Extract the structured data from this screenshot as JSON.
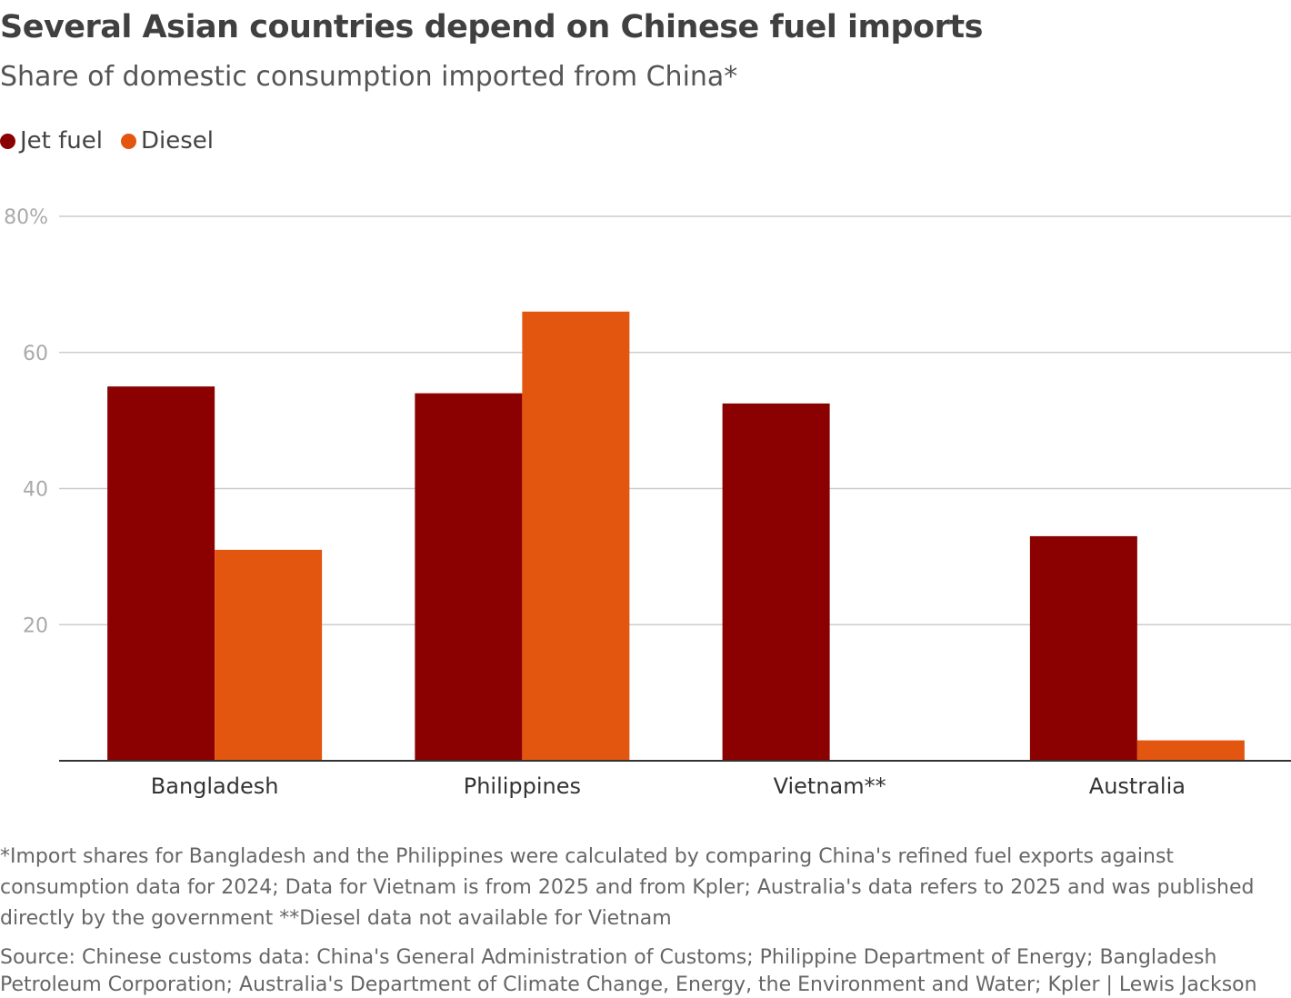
{
  "chart_data": {
    "type": "bar",
    "title": "Several Asian countries depend on Chinese fuel imports",
    "subtitle": "Share of domestic consumption imported from China*",
    "categories": [
      "Bangladesh",
      "Philippines",
      "Vietnam**",
      "Australia"
    ],
    "series": [
      {
        "name": "Jet fuel",
        "color": "#8b0000",
        "values": [
          55,
          54,
          52.5,
          33
        ]
      },
      {
        "name": "Diesel",
        "color": "#e3560f",
        "values": [
          31,
          66,
          null,
          3
        ]
      }
    ],
    "ylim": [
      0,
      80
    ],
    "yticks": [
      20,
      40,
      60,
      {
        "value": 80,
        "label": "80%"
      }
    ],
    "grid": true,
    "footnote": "*Import shares for Bangladesh and the Philippines were calculated by comparing China's refined fuel exports against consumption data for 2024; Data for Vietnam is from 2025 and from Kpler; Australia's data refers to 2025 and was published directly by the government **Diesel data not available for Vietnam",
    "source": "Source: Chinese customs data: China's General Administration of Customs; Philippine Department of Energy; Bangladesh Petroleum Corporation; Australia's Department of Climate Change, Energy, the Environment and Water; Kpler | Lewis Jackson"
  }
}
